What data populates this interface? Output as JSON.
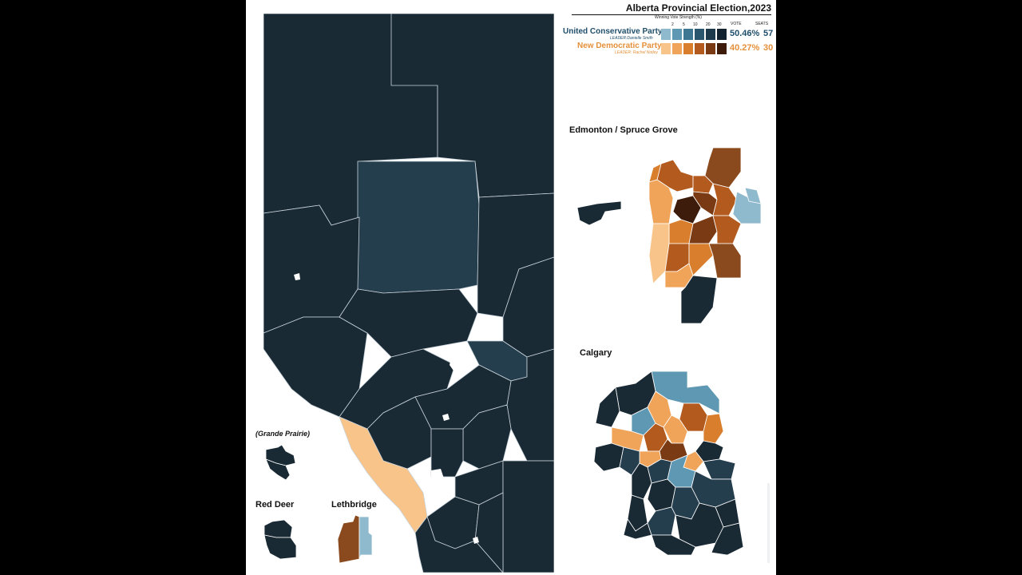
{
  "legend": {
    "title": "Alberta Provincial Election,2023",
    "subtitle": "Winning Vote Strength (%)",
    "ticks": [
      "2",
      "5",
      "10",
      "20",
      "30"
    ],
    "vote_header": "VOTE",
    "seats_header": "SEATS",
    "parties": [
      {
        "name": "United Conservative Party",
        "leader": "LEADER:Danielle Smith",
        "vote": "50.46%",
        "seats": "57",
        "color": "#1f4e6b",
        "swatches": [
          "#8fb9cc",
          "#5f98b2",
          "#3d7791",
          "#2a566e",
          "#1d3a4c",
          "#12222e"
        ]
      },
      {
        "name": "New Democratic Party",
        "leader": "LEADER: Rachel Notley",
        "vote": "40.27%",
        "seats": "30",
        "color": "#e5903a",
        "swatches": [
          "#f9c48a",
          "#f0a45a",
          "#d97e2c",
          "#b35a1e",
          "#7a3a14",
          "#3e1c0c"
        ]
      }
    ]
  },
  "insets": {
    "edmonton": "Edmonton / Spruce Grove",
    "calgary": "Calgary",
    "grande_prairie": "(Grande Prairie)",
    "red_deer": "Red Deer",
    "lethbridge": "Lethbridge"
  },
  "colors": {
    "ucp_dark": "#1a2a35",
    "ucp_mid": "#253e4e",
    "ucp_light": "#8fb9cc",
    "ndp_light": "#f9c48a",
    "ndp_mid": "#e5903a",
    "ndp_dark": "#8a4a1e",
    "border": "#c9d3da"
  }
}
